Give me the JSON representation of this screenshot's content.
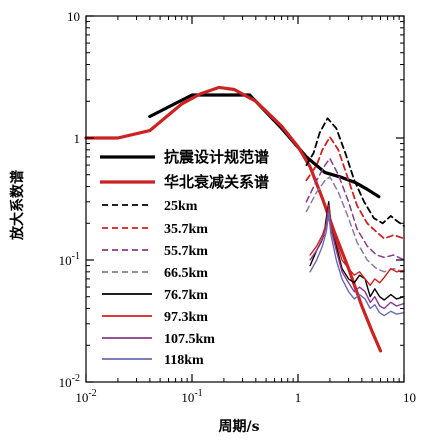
{
  "chart_data": {
    "type": "line",
    "xlabel": "周期/s",
    "ylabel": "放大系数谱",
    "xscale": "log",
    "yscale": "log",
    "xlim": [
      0.01,
      10
    ],
    "ylim": [
      0.01,
      10
    ],
    "x_ticks": [
      {
        "value": 0.01,
        "base": "10",
        "exp": "-2"
      },
      {
        "value": 0.1,
        "base": "10",
        "exp": "-1"
      },
      {
        "value": 1,
        "base": "1",
        "exp": ""
      },
      {
        "value": 10,
        "base": "10",
        "exp": ""
      }
    ],
    "y_ticks": [
      {
        "value": 0.01,
        "base": "10",
        "exp": "-2"
      },
      {
        "value": 0.1,
        "base": "10",
        "exp": "-1"
      },
      {
        "value": 1,
        "base": "1",
        "exp": ""
      },
      {
        "value": 10,
        "base": "10",
        "exp": ""
      }
    ],
    "legend_position": "center-left",
    "series": [
      {
        "name": "抗震设计规范谱",
        "color": "#000000",
        "dash": "",
        "width": 3.2,
        "points": [
          [
            0.04,
            1.5
          ],
          [
            0.1,
            2.25
          ],
          [
            0.35,
            2.25
          ],
          [
            0.7,
            1.2
          ],
          [
            1.2,
            0.7
          ],
          [
            1.8,
            0.52
          ],
          [
            2.5,
            0.48
          ],
          [
            3.5,
            0.43
          ],
          [
            4.5,
            0.38
          ],
          [
            5.8,
            0.33
          ]
        ]
      },
      {
        "name": "华北衰减关系谱",
        "color": "#cc2222",
        "dash": "",
        "width": 3.2,
        "points": [
          [
            0.01,
            1.0
          ],
          [
            0.02,
            1.0
          ],
          [
            0.04,
            1.15
          ],
          [
            0.08,
            1.9
          ],
          [
            0.12,
            2.3
          ],
          [
            0.18,
            2.6
          ],
          [
            0.25,
            2.5
          ],
          [
            0.4,
            2.0
          ],
          [
            0.7,
            1.25
          ],
          [
            1.0,
            0.85
          ],
          [
            1.3,
            0.58
          ],
          [
            1.7,
            0.32
          ],
          [
            2.2,
            0.17
          ],
          [
            3.0,
            0.085
          ],
          [
            4.0,
            0.042
          ],
          [
            5.0,
            0.026
          ],
          [
            6.0,
            0.018
          ]
        ]
      },
      {
        "name": "25km",
        "color": "#000000",
        "dash": "6,4",
        "width": 1.8,
        "points": [
          [
            1.2,
            0.6
          ],
          [
            1.4,
            0.75
          ],
          [
            1.6,
            1.1
          ],
          [
            1.9,
            1.45
          ],
          [
            2.3,
            1.2
          ],
          [
            2.8,
            0.75
          ],
          [
            3.4,
            0.45
          ],
          [
            4.2,
            0.3
          ],
          [
            5.2,
            0.22
          ],
          [
            6.3,
            0.2
          ],
          [
            7.5,
            0.23
          ],
          [
            8.5,
            0.21
          ],
          [
            10,
            0.19
          ]
        ]
      },
      {
        "name": "35.7km",
        "color": "#cc2222",
        "dash": "6,4",
        "width": 1.8,
        "points": [
          [
            1.2,
            0.45
          ],
          [
            1.5,
            0.6
          ],
          [
            1.7,
            0.8
          ],
          [
            2.0,
            1.02
          ],
          [
            2.4,
            0.8
          ],
          [
            3.0,
            0.45
          ],
          [
            3.6,
            0.28
          ],
          [
            4.5,
            0.2
          ],
          [
            5.5,
            0.17
          ],
          [
            6.5,
            0.15
          ],
          [
            8,
            0.16
          ],
          [
            10,
            0.15
          ]
        ]
      },
      {
        "name": "55.7km",
        "color": "#8a3a8a",
        "dash": "6,4",
        "width": 1.5,
        "points": [
          [
            1.2,
            0.3
          ],
          [
            1.5,
            0.45
          ],
          [
            1.8,
            0.6
          ],
          [
            2.0,
            0.68
          ],
          [
            2.4,
            0.5
          ],
          [
            3.0,
            0.3
          ],
          [
            3.6,
            0.18
          ],
          [
            4.5,
            0.13
          ],
          [
            5.5,
            0.11
          ],
          [
            6.5,
            0.105
          ],
          [
            8,
            0.11
          ],
          [
            10,
            0.1
          ]
        ]
      },
      {
        "name": "66.5km",
        "color": "#8a7aa8",
        "dash": "6,4",
        "width": 1.5,
        "points": [
          [
            1.2,
            0.25
          ],
          [
            1.5,
            0.36
          ],
          [
            1.8,
            0.45
          ],
          [
            2.0,
            0.48
          ],
          [
            2.4,
            0.36
          ],
          [
            3.0,
            0.22
          ],
          [
            3.6,
            0.14
          ],
          [
            4.5,
            0.1
          ],
          [
            5.5,
            0.085
          ],
          [
            6.5,
            0.08
          ],
          [
            8,
            0.085
          ],
          [
            10,
            0.08
          ]
        ]
      },
      {
        "name": "76.7km",
        "color": "#000000",
        "dash": "",
        "width": 1.4,
        "points": [
          [
            1.3,
            0.09
          ],
          [
            1.5,
            0.12
          ],
          [
            1.65,
            0.14
          ],
          [
            1.75,
            0.16
          ],
          [
            1.85,
            0.22
          ],
          [
            1.95,
            0.3
          ],
          [
            2.05,
            0.2
          ],
          [
            2.3,
            0.13
          ],
          [
            2.6,
            0.085
          ],
          [
            3.0,
            0.07
          ],
          [
            3.4,
            0.065
          ],
          [
            3.8,
            0.075
          ],
          [
            4.3,
            0.07
          ],
          [
            4.8,
            0.05
          ],
          [
            5.3,
            0.058
          ],
          [
            5.9,
            0.05
          ],
          [
            6.5,
            0.047
          ],
          [
            7.5,
            0.052
          ],
          [
            8.5,
            0.048
          ],
          [
            10,
            0.05
          ]
        ]
      },
      {
        "name": "97.3km",
        "color": "#cc2222",
        "dash": "",
        "width": 1.4,
        "points": [
          [
            1.3,
            0.11
          ],
          [
            1.5,
            0.13
          ],
          [
            1.7,
            0.16
          ],
          [
            1.85,
            0.2
          ],
          [
            1.95,
            0.28
          ],
          [
            2.05,
            0.2
          ],
          [
            2.3,
            0.14
          ],
          [
            2.6,
            0.1
          ],
          [
            3.0,
            0.085
          ],
          [
            3.4,
            0.075
          ],
          [
            3.8,
            0.08
          ],
          [
            4.3,
            0.07
          ],
          [
            4.8,
            0.062
          ],
          [
            5.3,
            0.07
          ],
          [
            5.9,
            0.065
          ],
          [
            6.5,
            0.072
          ],
          [
            7.5,
            0.085
          ],
          [
            8.5,
            0.08
          ],
          [
            10,
            0.082
          ]
        ]
      },
      {
        "name": "107.5km",
        "color": "#8a3a8a",
        "dash": "",
        "width": 1.4,
        "points": [
          [
            1.3,
            0.1
          ],
          [
            1.5,
            0.12
          ],
          [
            1.7,
            0.15
          ],
          [
            1.85,
            0.19
          ],
          [
            1.95,
            0.26
          ],
          [
            2.05,
            0.18
          ],
          [
            2.3,
            0.12
          ],
          [
            2.6,
            0.08
          ],
          [
            3.0,
            0.065
          ],
          [
            3.4,
            0.055
          ],
          [
            3.8,
            0.06
          ],
          [
            4.3,
            0.055
          ],
          [
            4.8,
            0.045
          ],
          [
            5.3,
            0.05
          ],
          [
            5.9,
            0.042
          ],
          [
            6.5,
            0.04
          ],
          [
            7.5,
            0.045
          ],
          [
            8.5,
            0.042
          ],
          [
            10,
            0.044
          ]
        ]
      },
      {
        "name": "118km",
        "color": "#6a6ab0",
        "dash": "",
        "width": 1.4,
        "points": [
          [
            1.3,
            0.08
          ],
          [
            1.5,
            0.1
          ],
          [
            1.7,
            0.13
          ],
          [
            1.85,
            0.17
          ],
          [
            1.95,
            0.24
          ],
          [
            2.05,
            0.16
          ],
          [
            2.3,
            0.1
          ],
          [
            2.6,
            0.07
          ],
          [
            3.0,
            0.055
          ],
          [
            3.4,
            0.048
          ],
          [
            3.8,
            0.052
          ],
          [
            4.3,
            0.048
          ],
          [
            4.8,
            0.04
          ],
          [
            5.3,
            0.043
          ],
          [
            5.9,
            0.037
          ],
          [
            6.5,
            0.035
          ],
          [
            7.5,
            0.038
          ],
          [
            8.5,
            0.036
          ],
          [
            10,
            0.037
          ]
        ]
      }
    ]
  }
}
